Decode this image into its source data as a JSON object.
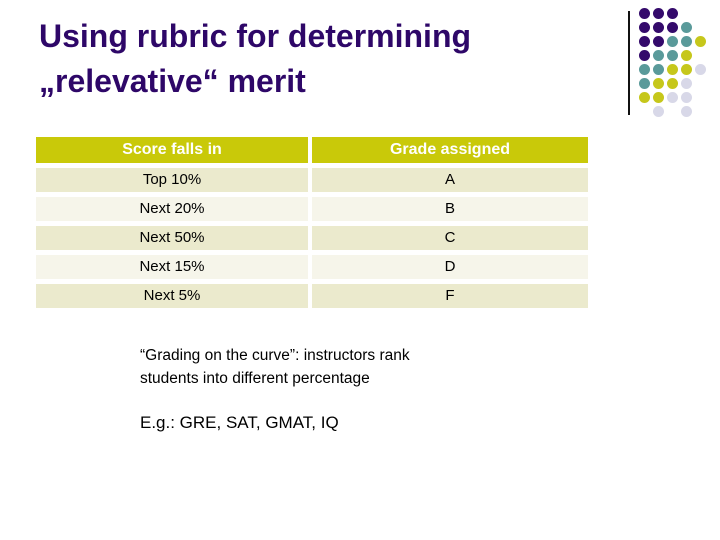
{
  "slide": {
    "title_line1": "Using rubric for determining",
    "title_line2": "„relevative“ merit"
  },
  "table": {
    "headers": [
      "Score falls in",
      "Grade assigned"
    ],
    "rows": [
      {
        "score": "Top 10%",
        "grade": "A"
      },
      {
        "score": "Next 20%",
        "grade": "B"
      },
      {
        "score": "Next 50%",
        "grade": "C"
      },
      {
        "score": "Next 15%",
        "grade": "D"
      },
      {
        "score": "Next 5%",
        "grade": "F"
      }
    ]
  },
  "notes": {
    "line1": "“Grading on the curve”: instructors rank",
    "line2": "students into different percentage",
    "examples": "E.g.: GRE, SAT, GMAT, IQ"
  },
  "theme": {
    "title_color": "#2E0768",
    "header_bg": "#C9C909",
    "row_bg_a": "#EBEACD",
    "row_bg_b": "#F6F5EA",
    "rule_color": "#111111"
  },
  "decoration": {
    "colors": {
      "purple": "#340A6B",
      "teal": "#5A9A9A",
      "yellow": "#C6C71B",
      "gray": "#D8D8E8"
    },
    "pattern": [
      [
        "purple",
        "purple",
        "purple",
        null,
        null
      ],
      [
        "purple",
        "purple",
        "purple",
        "teal",
        null
      ],
      [
        "purple",
        "purple",
        "teal",
        "teal",
        "yellow"
      ],
      [
        "purple",
        "teal",
        "teal",
        "yellow",
        null
      ],
      [
        "teal",
        "teal",
        "yellow",
        "yellow",
        "gray"
      ],
      [
        "teal",
        "yellow",
        "yellow",
        "gray",
        null
      ],
      [
        "yellow",
        "yellow",
        "gray",
        "gray",
        null
      ],
      [
        null,
        "gray",
        null,
        "gray",
        null
      ]
    ]
  }
}
